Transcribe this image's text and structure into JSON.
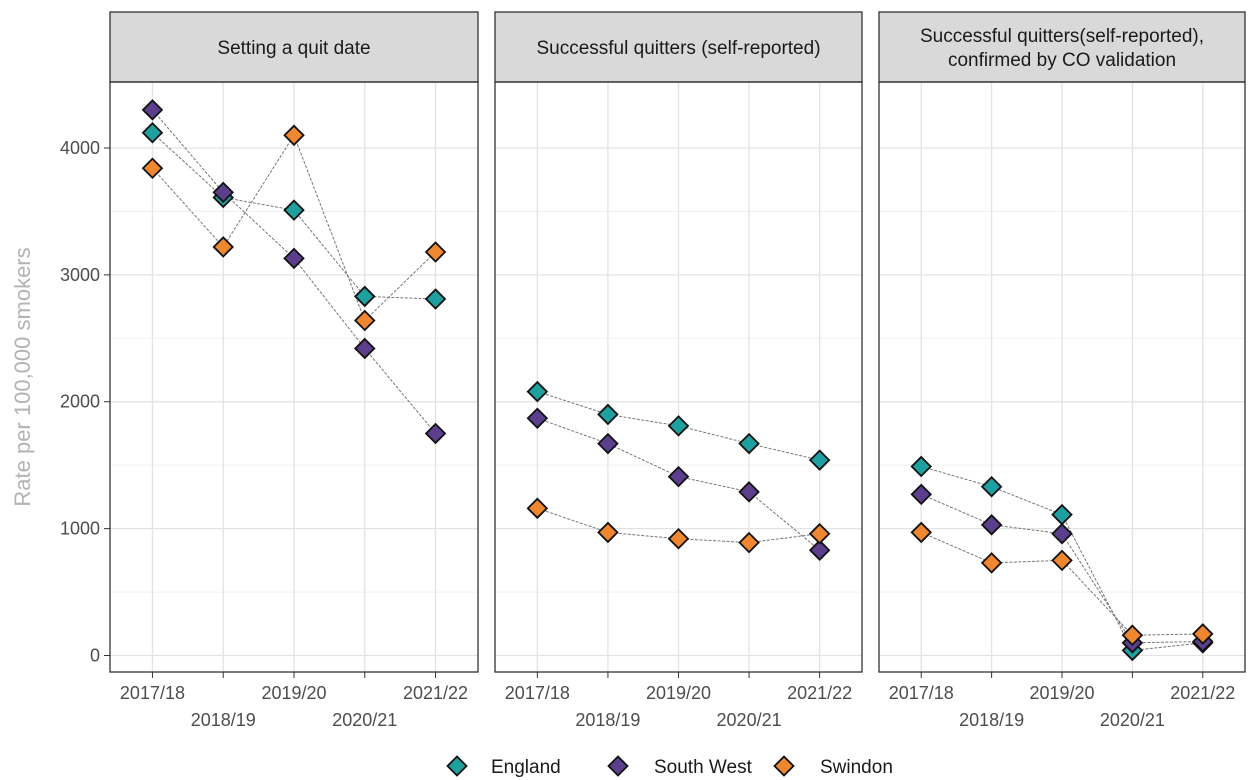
{
  "chart_data": {
    "type": "line",
    "ylabel": "Rate per 100,000 smokers",
    "xlabel": "",
    "ylim": [
      -130,
      4520
    ],
    "yticks": [
      0,
      1000,
      2000,
      3000,
      4000
    ],
    "ytick_labels": [
      "0",
      "1000",
      "2000",
      "3000",
      "4000"
    ],
    "categories": [
      "2017/18",
      "2018/19",
      "2019/20",
      "2020/21",
      "2021/22"
    ],
    "grid": true,
    "legend_position": "bottom",
    "colors": {
      "England": "#1fa0a0",
      "South West": "#5b3e8c",
      "Swindon": "#ee8730"
    },
    "panels": [
      {
        "title_lines": [
          "Setting a quit date"
        ],
        "series": [
          {
            "name": "England",
            "values": [
              4120,
              3610,
              3510,
              2830,
              2810
            ]
          },
          {
            "name": "South West",
            "values": [
              4300,
              3650,
              3130,
              2420,
              1750
            ]
          },
          {
            "name": "Swindon",
            "values": [
              3840,
              3220,
              4100,
              2640,
              3180
            ]
          }
        ]
      },
      {
        "title_lines": [
          "Successful quitters (self-reported)"
        ],
        "series": [
          {
            "name": "England",
            "values": [
              2080,
              1900,
              1810,
              1670,
              1540
            ]
          },
          {
            "name": "South West",
            "values": [
              1870,
              1670,
              1410,
              1290,
              830
            ]
          },
          {
            "name": "Swindon",
            "values": [
              1160,
              970,
              920,
              890,
              960
            ]
          }
        ]
      },
      {
        "title_lines": [
          "Successful quitters(self-reported),",
          "confirmed by CO validation"
        ],
        "series": [
          {
            "name": "England",
            "values": [
              1490,
              1330,
              1110,
              40,
              100
            ]
          },
          {
            "name": "South West",
            "values": [
              1270,
              1030,
              960,
              100,
              110
            ]
          },
          {
            "name": "Swindon",
            "values": [
              970,
              730,
              750,
              160,
              170
            ]
          }
        ]
      }
    ],
    "legend": [
      "England",
      "South West",
      "Swindon"
    ]
  }
}
